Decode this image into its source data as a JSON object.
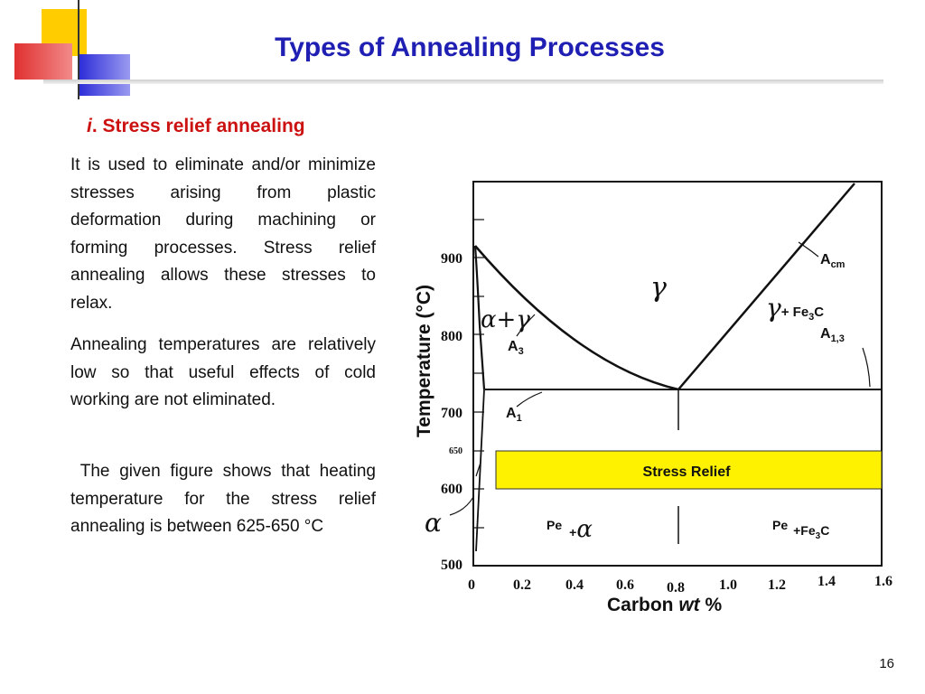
{
  "slide": {
    "title": "Types of Annealing Processes",
    "subtitle_numeral": "i",
    "subtitle_text": ". Stress relief annealing",
    "paragraphs": [
      "It is used to eliminate and/or minimize stresses arising from plastic deformation during machining or forming processes. Stress relief annealing allows these stresses to relax.",
      "Annealing temperatures are relatively low so that useful effects of cold working are not eliminated.",
      " The given figure shows that heating temperature for the stress relief annealing is between 625-650 °C"
    ],
    "page_number": "16"
  },
  "colors": {
    "title": "#1f1fb3",
    "subtitle": "#cc1111",
    "stress_band": "#fff200",
    "deco_yellow": "#ffcc00",
    "deco_red": "#e03030",
    "deco_blue": "#2a2ad8"
  },
  "diagram": {
    "y_axis_label": "Temperature (°C)",
    "y_ticks": [
      "900",
      "800",
      "700",
      "650",
      "600",
      "500"
    ],
    "x_axis_label_main": "Carbon ",
    "x_axis_label_italic": "wt",
    "x_axis_label_unit": " %",
    "x_ticks": [
      "0",
      "0.2",
      "0.4",
      "0.6",
      "0.8",
      "1.0",
      "1.2",
      "1.4",
      "1.6"
    ],
    "region_labels": {
      "gamma": "γ",
      "alpha_gamma": "α+γ",
      "gamma_fe3c_greek": "γ",
      "gamma_fe3c_text": "+ Fe",
      "gamma_fe3c_sub": "3",
      "gamma_fe3c_end": "C",
      "alpha": "α",
      "pe_alpha_text": "Pe",
      "pe_alpha_plus": "+",
      "pe_alpha_greek": "α",
      "pe_fe3c_text": "Pe",
      "pe_fe3c_plus": "+Fe",
      "pe_fe3c_sub": "3",
      "pe_fe3c_end": "C"
    },
    "line_labels": {
      "a3_main": "A",
      "a3_sub": "3",
      "a1_main": "A",
      "a1_sub": "1",
      "acm_main": "A",
      "acm_sub": "cm",
      "a13_main": "A",
      "a13_sub": "1,3"
    },
    "stress_relief_label": "Stress Relief"
  }
}
